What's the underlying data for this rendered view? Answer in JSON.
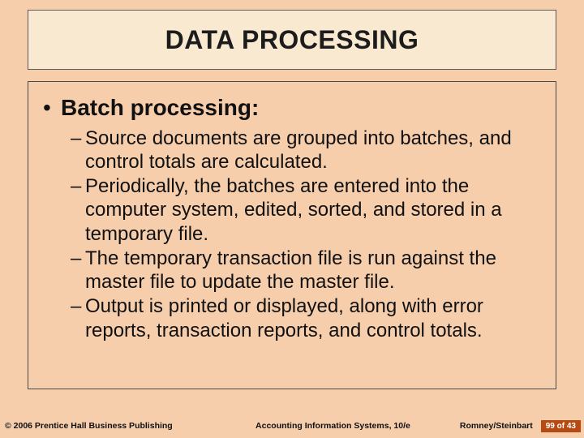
{
  "colors": {
    "slide_background": "#f6ceac",
    "title_box_background": "#f9e9d0",
    "title_box_border": "#5b5b5b",
    "content_box_border": "#4a4a4a",
    "text_color": "#111111",
    "page_badge_bg": "#b74a12",
    "page_badge_text": "#ffffff"
  },
  "typography": {
    "title_fontsize": 32,
    "bullet_fontsize": 28,
    "sub_fontsize": 24,
    "footer_fontsize": 10.5,
    "font_family": "Arial"
  },
  "title": "DATA PROCESSING",
  "bullet": {
    "marker": "•",
    "text": "Batch processing:"
  },
  "sub_items": [
    {
      "dash": "–",
      "text": "Source documents are grouped into batches, and control totals are calculated."
    },
    {
      "dash": "–",
      "text": "Periodically, the batches are entered into the computer system, edited, sorted, and stored in a temporary file."
    },
    {
      "dash": "–",
      "text": "The temporary transaction file is run against the master file to update the master file."
    },
    {
      "dash": "–",
      "text": "Output is printed or displayed, along with error reports, transaction reports, and control totals."
    }
  ],
  "footer": {
    "left": "© 2006 Prentice Hall Business Publishing",
    "center": "Accounting Information Systems, 10/e",
    "author": "Romney/Steinbart",
    "page": "99 of 43"
  }
}
